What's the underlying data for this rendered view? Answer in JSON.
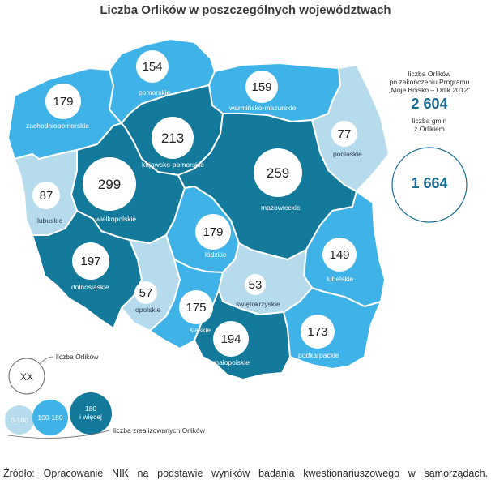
{
  "title": "Liczba Orlików w poszczególnych województwach",
  "colors": {
    "light": "#b6dbec",
    "medium": "#3fb3e7",
    "dark": "#137a9b",
    "number": "#1a6e91"
  },
  "regions": [
    {
      "id": "zachodniopomorskie",
      "name": "zachodniopomorskie",
      "count": "179",
      "tier": "medium"
    },
    {
      "id": "pomorskie",
      "name": "pomorskie",
      "count": "154",
      "tier": "medium"
    },
    {
      "id": "warminsko-mazurskie",
      "name": "warmińsko-mazurskie",
      "count": "159",
      "tier": "medium"
    },
    {
      "id": "podlaskie",
      "name": "podlaskie",
      "count": "77",
      "tier": "light"
    },
    {
      "id": "kujawsko-pomorskie",
      "name": "kujawsko-pomorskie",
      "count": "213",
      "tier": "dark"
    },
    {
      "id": "wielkopolskie",
      "name": "wielkopolskie",
      "count": "299",
      "tier": "dark"
    },
    {
      "id": "mazowieckie",
      "name": "mazowieckie",
      "count": "259",
      "tier": "dark"
    },
    {
      "id": "lubuskie",
      "name": "lubuskie",
      "count": "87",
      "tier": "light"
    },
    {
      "id": "lodzkie",
      "name": "łódzkie",
      "count": "179",
      "tier": "medium"
    },
    {
      "id": "lubelskie",
      "name": "lubelskie",
      "count": "149",
      "tier": "medium"
    },
    {
      "id": "dolnoslaskie",
      "name": "dolnośląskie",
      "count": "197",
      "tier": "dark"
    },
    {
      "id": "opolskie",
      "name": "opolskie",
      "count": "57",
      "tier": "light"
    },
    {
      "id": "slaskie",
      "name": "śląskie",
      "count": "175",
      "tier": "medium"
    },
    {
      "id": "swietokrzyskie",
      "name": "świętokrzyskie",
      "count": "53",
      "tier": "light"
    },
    {
      "id": "malopolskie",
      "name": "małopolskie",
      "count": "194",
      "tier": "dark"
    },
    {
      "id": "podkarpackie",
      "name": "podkarpackie",
      "count": "173",
      "tier": "medium"
    }
  ],
  "stats": {
    "orliki_label_1": "liczba Orlików",
    "orliki_label_2": "po zakończeniu Programu",
    "orliki_label_3": "„Moje Boisko – Orlik 2012”",
    "orliki_value": "2 604",
    "gminy_label_1": "liczba gmin",
    "gminy_label_2": "z Orlikiem",
    "gminy_value": "1 664"
  },
  "legend": {
    "circle_label": "liczba Orlików",
    "circle_text": "XX",
    "tier_light": "0-100",
    "tier_medium": "100-180",
    "tier_dark_1": "180",
    "tier_dark_2": "i więcej",
    "tiers_label": "liczba zrealizowanych Orlików"
  },
  "source": "Źródło: Opracowanie NIK na podstawie wyników badania kwestionariuszowego w samorządach."
}
